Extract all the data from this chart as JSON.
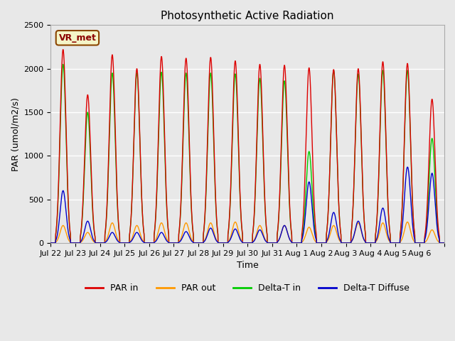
{
  "title": "Photosynthetic Active Radiation",
  "ylabel": "PAR (umol/m2/s)",
  "xlabel": "Time",
  "annotation": "VR_met",
  "ylim": [
    0,
    2500
  ],
  "background_color": "#e8e8e8",
  "plot_bg_color": "#e8e8e8",
  "grid_color": "white",
  "colors": {
    "PAR in": "#dd0000",
    "PAR out": "#ff9900",
    "Delta-T in": "#00cc00",
    "Delta-T Diffuse": "#0000cc"
  },
  "legend_labels": [
    "PAR in",
    "PAR out",
    "Delta-T in",
    "Delta-T Diffuse"
  ],
  "x_tick_labels": [
    "Jul 22",
    "Jul 23",
    "Jul 24",
    "Jul 25",
    "Jul 26",
    "Jul 27",
    "Jul 28",
    "Jul 29",
    "Jul 30",
    "Jul 31",
    "Aug 1",
    "Aug 2",
    "Aug 3",
    "Aug 4",
    "Aug 5",
    "Aug 6"
  ],
  "n_days": 16,
  "start_day": 0
}
